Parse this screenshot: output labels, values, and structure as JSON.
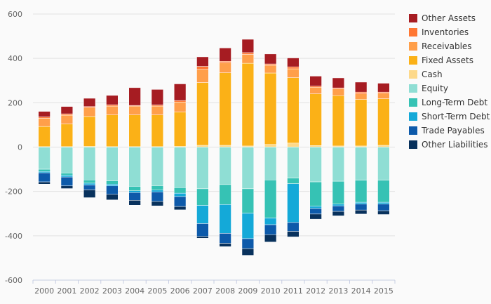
{
  "chart_data": {
    "type": "bar",
    "stacked": true,
    "categories": [
      "2000",
      "2001",
      "2002",
      "2003",
      "2004",
      "2005",
      "2006",
      "2007",
      "2008",
      "2009",
      "2010",
      "2011",
      "2012",
      "2013",
      "2014",
      "2015"
    ],
    "ylim": [
      -600,
      600
    ],
    "yticks": [
      600,
      400,
      200,
      0,
      -200,
      -400,
      -600
    ],
    "grid": true,
    "legend_position": "right",
    "assets": [
      {
        "name": "Cash",
        "color": "#fdd98a",
        "values": [
          2,
          2,
          3,
          2,
          2,
          2,
          3,
          8,
          8,
          5,
          12,
          18,
          7,
          5,
          5,
          8
        ]
      },
      {
        "name": "Fixed Assets",
        "color": "#fbb117",
        "values": [
          91,
          102,
          135,
          143,
          143,
          143,
          155,
          283,
          327,
          373,
          322,
          295,
          233,
          227,
          210,
          210
        ]
      },
      {
        "name": "Receivables",
        "color": "#ff9f4a",
        "values": [
          37,
          40,
          40,
          40,
          40,
          40,
          45,
          60,
          45,
          40,
          35,
          40,
          30,
          30,
          25,
          25
        ]
      },
      {
        "name": "Inventories",
        "color": "#ff7733",
        "values": [
          6,
          6,
          5,
          6,
          3,
          5,
          7,
          13,
          7,
          8,
          6,
          9,
          5,
          5,
          8,
          5
        ]
      },
      {
        "name": "Other Assets",
        "color": "#a61c22",
        "values": [
          25,
          33,
          37,
          42,
          80,
          70,
          75,
          43,
          60,
          60,
          45,
          40,
          45,
          45,
          45,
          40
        ]
      }
    ],
    "liabilities": [
      {
        "name": "Equity",
        "color": "#8fded4",
        "values": [
          -100,
          -117,
          -148,
          -152,
          -177,
          -174,
          -183,
          -188,
          -169,
          -188,
          -148,
          -140,
          -157,
          -154,
          -149,
          -149
        ]
      },
      {
        "name": "Long-Term Debt",
        "color": "#36c2b4",
        "values": [
          -10,
          -10,
          -15,
          -15,
          -20,
          -20,
          -25,
          -75,
          -90,
          -110,
          -172,
          -25,
          -110,
          -103,
          -100,
          -100
        ]
      },
      {
        "name": "Short-Term Debt",
        "color": "#14a9d8",
        "values": [
          -6,
          -8,
          -8,
          -8,
          -8,
          -8,
          -15,
          -82,
          -130,
          -115,
          -30,
          -175,
          -10,
          -8,
          -8,
          -8
        ]
      },
      {
        "name": "Trade Payables",
        "color": "#0d5aaa",
        "values": [
          -41,
          -40,
          -22,
          -38,
          -35,
          -43,
          -45,
          -58,
          -45,
          -45,
          -45,
          -40,
          -25,
          -25,
          -27,
          -30
        ]
      },
      {
        "name": "Other Liabilities",
        "color": "#08315c",
        "values": [
          -10,
          -12,
          -35,
          -25,
          -22,
          -20,
          -15,
          -8,
          -15,
          -30,
          -33,
          -25,
          -23,
          -20,
          -18,
          -17
        ]
      }
    ],
    "legend": [
      {
        "name": "Other Assets",
        "color": "#a61c22"
      },
      {
        "name": "Inventories",
        "color": "#ff7733"
      },
      {
        "name": "Receivables",
        "color": "#ff9f4a"
      },
      {
        "name": "Fixed Assets",
        "color": "#fbb117"
      },
      {
        "name": "Cash",
        "color": "#fdd98a"
      },
      {
        "name": "Equity",
        "color": "#8fded4"
      },
      {
        "name": "Long-Term Debt",
        "color": "#36c2b4"
      },
      {
        "name": "Short-Term Debt",
        "color": "#14a9d8"
      },
      {
        "name": "Trade Payables",
        "color": "#0d5aaa"
      },
      {
        "name": "Other Liabilities",
        "color": "#08315c"
      }
    ]
  }
}
